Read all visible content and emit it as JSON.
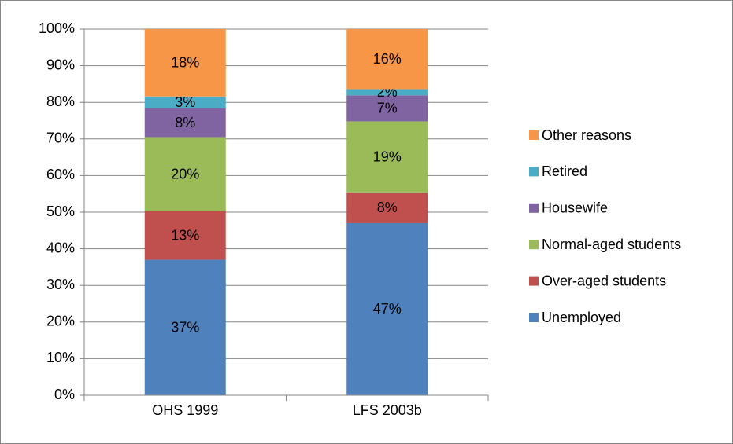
{
  "chart_data": {
    "type": "stacked-bar",
    "categories": [
      "OHS 1999",
      "LFS 2003b"
    ],
    "series": [
      {
        "name": "Unemployed",
        "color": "#4f81bd",
        "values": [
          37.0,
          47.0
        ],
        "value_labels": [
          "37%",
          "47%"
        ]
      },
      {
        "name": "Over-aged students",
        "color": "#c0504d",
        "values": [
          13.3,
          8.4
        ],
        "value_labels": [
          "13%",
          "8%"
        ]
      },
      {
        "name": "Normal-aged students",
        "color": "#9bbb59",
        "values": [
          20.2,
          19.4
        ],
        "value_labels": [
          "20%",
          "19%"
        ]
      },
      {
        "name": "Housewife",
        "color": "#8064a2",
        "values": [
          7.9,
          7.1
        ],
        "value_labels": [
          "8%",
          "7%"
        ]
      },
      {
        "name": "Retired",
        "color": "#4bacc6",
        "values": [
          3.2,
          1.7
        ],
        "value_labels": [
          "3%",
          "2%"
        ]
      },
      {
        "name": "Other reasons",
        "color": "#f79646",
        "values": [
          18.4,
          16.4
        ],
        "value_labels": [
          "18%",
          "16%"
        ]
      }
    ],
    "ylim": [
      0,
      100
    ],
    "yticks": [
      {
        "value": 0,
        "label": "0%"
      },
      {
        "value": 10,
        "label": "10%"
      },
      {
        "value": 20,
        "label": "20%"
      },
      {
        "value": 30,
        "label": "30%"
      },
      {
        "value": 40,
        "label": "40%"
      },
      {
        "value": 50,
        "label": "50%"
      },
      {
        "value": 60,
        "label": "60%"
      },
      {
        "value": 70,
        "label": "70%"
      },
      {
        "value": 80,
        "label": "80%"
      },
      {
        "value": 90,
        "label": "90%"
      },
      {
        "value": 100,
        "label": "100%"
      }
    ],
    "grid": true,
    "legend": "right"
  }
}
